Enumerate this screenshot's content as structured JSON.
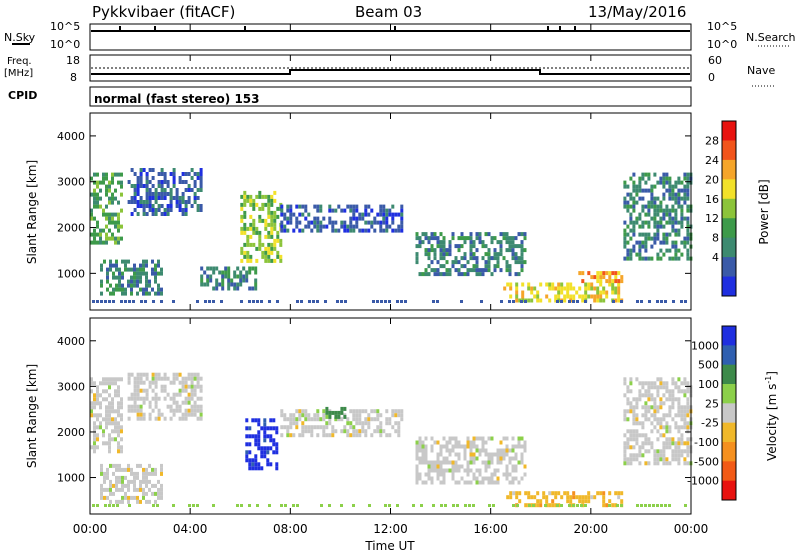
{
  "header": {
    "title": "Pykkvibaer (fitACF)",
    "beam": "Beam 03",
    "date": "13/May/2016"
  },
  "summary_labels": {
    "nsky": "N.Sky",
    "nsearch": "N.Search",
    "freq": "Freq.",
    "freq_unit": "[MHz]",
    "nave": "Nave",
    "cpid": "CPID",
    "cpid_value": "normal (fast stereo) 153"
  },
  "summary_axes": {
    "n_hi": "10^5",
    "n_lo": "10^0",
    "freq_hi": "18",
    "freq_lo": "8",
    "nave_hi": "60",
    "nave_lo": "0"
  },
  "chart_data": [
    {
      "type": "heatmap",
      "name": "power",
      "ylabel": "Slant Range [km]",
      "ylim": [
        200,
        4500
      ],
      "yticks": [
        1000,
        2000,
        3000,
        4000
      ],
      "xlim": [
        0,
        24
      ],
      "xticks": [
        "00:00",
        "04:00",
        "08:00",
        "12:00",
        "16:00",
        "20:00",
        "00:00"
      ],
      "colorbar": {
        "label": "Power [dB]",
        "ticks": [
          "28",
          "24",
          "20",
          "16",
          "12",
          "8",
          "4"
        ],
        "colors": [
          "#e8120f",
          "#f2541b",
          "#f5a52a",
          "#f2e12a",
          "#8cc43a",
          "#3d9a4a",
          "#3d8a70",
          "#3a5aa8",
          "#1f2fe0"
        ]
      },
      "echo_regions": [
        {
          "t0": 0.0,
          "t1": 1.2,
          "r0": 1700,
          "r1": 3200,
          "level": 3
        },
        {
          "t0": 0.4,
          "t1": 2.8,
          "r0": 600,
          "r1": 1300,
          "level": 2
        },
        {
          "t0": 1.5,
          "t1": 4.4,
          "r0": 2300,
          "r1": 3300,
          "level": 1
        },
        {
          "t0": 4.4,
          "t1": 6.6,
          "r0": 700,
          "r1": 1150,
          "level": 2
        },
        {
          "t0": 6.0,
          "t1": 7.6,
          "r0": 1300,
          "r1": 2800,
          "level": 4
        },
        {
          "t0": 7.6,
          "t1": 12.5,
          "r0": 1900,
          "r1": 2500,
          "level": 1
        },
        {
          "t0": 13.0,
          "t1": 17.4,
          "r0": 1000,
          "r1": 1900,
          "level": 2
        },
        {
          "t0": 16.5,
          "t1": 21.2,
          "r0": 400,
          "r1": 800,
          "level": 5
        },
        {
          "t0": 19.5,
          "t1": 21.2,
          "r0": 800,
          "r1": 1050,
          "level": 6
        },
        {
          "t0": 21.3,
          "t1": 24.0,
          "r0": 1300,
          "r1": 3200,
          "level": 2
        }
      ]
    },
    {
      "type": "heatmap",
      "name": "velocity",
      "ylabel": "Slant Range [km]",
      "ylim": [
        200,
        4500
      ],
      "yticks": [
        1000,
        2000,
        3000,
        4000
      ],
      "xlim": [
        0,
        24
      ],
      "xticks": [
        "00:00",
        "04:00",
        "08:00",
        "12:00",
        "16:00",
        "20:00",
        "00:00"
      ],
      "xlabel": "Time UT",
      "colorbar": {
        "label": "Velocity [m s",
        "label_sup": "-1",
        "label_end": "]",
        "ticks": [
          "1000",
          "500",
          "100",
          "25",
          "-25",
          "-100",
          "-500",
          "-1000"
        ],
        "colors": [
          "#1f2fe0",
          "#2f5fb0",
          "#3d8a4a",
          "#8cd04a",
          "#c8c8c8",
          "#f0b82a",
          "#f5901f",
          "#f25a16",
          "#e8120f"
        ]
      },
      "echo_regions": [
        {
          "t0": 0.0,
          "t1": 1.2,
          "r0": 1600,
          "r1": 3200,
          "level": 4
        },
        {
          "t0": 0.4,
          "t1": 2.8,
          "r0": 500,
          "r1": 1300,
          "level": 4
        },
        {
          "t0": 1.5,
          "t1": 4.4,
          "r0": 2300,
          "r1": 3300,
          "level": 4
        },
        {
          "t0": 6.2,
          "t1": 7.4,
          "r0": 1200,
          "r1": 2300,
          "level": 8
        },
        {
          "t0": 7.6,
          "t1": 12.5,
          "r0": 1900,
          "r1": 2500,
          "level": 4
        },
        {
          "t0": 9.4,
          "t1": 10.2,
          "r0": 2350,
          "r1": 2550,
          "level": 6
        },
        {
          "t0": 13.0,
          "t1": 17.4,
          "r0": 900,
          "r1": 1900,
          "level": 4
        },
        {
          "t0": 16.5,
          "t1": 21.2,
          "r0": 400,
          "r1": 700,
          "level": 3
        },
        {
          "t0": 21.3,
          "t1": 24.0,
          "r0": 1300,
          "r1": 3200,
          "level": 4
        }
      ]
    }
  ]
}
